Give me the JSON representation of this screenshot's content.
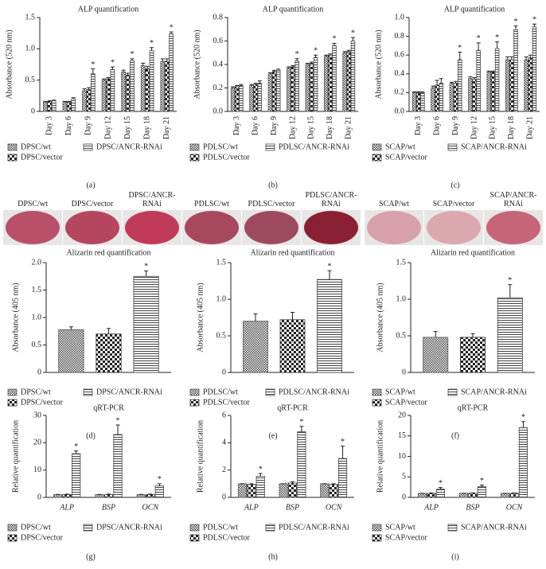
{
  "chart_data": [
    {
      "type": "bar",
      "label": "(a)",
      "title": "ALP quantification",
      "ylabel": "Absorbance (520 nm)",
      "xtick_rotation": 90,
      "categories": [
        "Day 3",
        "Day 6",
        "Day 9",
        "Day 12",
        "Day 15",
        "Day 18",
        "Day 21"
      ],
      "ylim": [
        0,
        1.5
      ],
      "yticks": [
        0,
        0.5,
        {
          "value": 1,
          "label": "1.0"
        },
        1.5
      ],
      "series": [
        {
          "name": "DPSC/wt",
          "pattern": "grid",
          "color": "#555555",
          "values": [
            0.15,
            0.15,
            0.33,
            0.5,
            0.63,
            0.73,
            0.8
          ],
          "errors": [
            0.01,
            0.01,
            0.03,
            0.02,
            0.03,
            0.04,
            0.04
          ],
          "markers": [
            null,
            null,
            null,
            null,
            null,
            null,
            null
          ]
        },
        {
          "name": "DPSC/vector",
          "pattern": "checker",
          "color": "#333333",
          "values": [
            0.16,
            0.15,
            0.35,
            0.52,
            0.58,
            0.68,
            0.8
          ],
          "errors": [
            0.01,
            0.01,
            0.03,
            0.02,
            0.03,
            0.04,
            0.04
          ],
          "markers": [
            null,
            null,
            null,
            null,
            null,
            null,
            null
          ]
        },
        {
          "name": "DPSC/ANCR-RNAi",
          "pattern": "hstripe",
          "color": "#444444",
          "values": [
            0.17,
            0.2,
            0.6,
            0.67,
            0.81,
            0.97,
            1.24
          ],
          "errors": [
            0.01,
            0.02,
            0.08,
            0.04,
            0.03,
            0.05,
            0.03
          ],
          "markers": [
            null,
            null,
            "*",
            "*",
            "*",
            "*",
            "*"
          ]
        }
      ]
    },
    {
      "type": "bar",
      "label": "(b)",
      "title": "ALP quantification",
      "ylabel": "Absorbance (520 nm)",
      "xtick_rotation": 90,
      "categories": [
        "Day 3",
        "Day 6",
        "Day 9",
        "Day 12",
        "Day 15",
        "Day 18",
        "Day 21"
      ],
      "ylim": [
        0,
        0.8
      ],
      "yticks": [
        {
          "value": 0,
          "label": "0.0"
        },
        0.2,
        0.4,
        0.6,
        0.8
      ],
      "series": [
        {
          "name": "PDLSC/wt",
          "pattern": "grid",
          "color": "#555555",
          "values": [
            0.2,
            0.22,
            0.32,
            0.37,
            0.4,
            0.47,
            0.5
          ],
          "errors": [
            0.01,
            0.01,
            0.01,
            0.01,
            0.01,
            0.01,
            0.01
          ],
          "markers": [
            null,
            null,
            null,
            null,
            null,
            null,
            null
          ]
        },
        {
          "name": "PDLSC/vector",
          "pattern": "checker",
          "color": "#333333",
          "values": [
            0.21,
            0.23,
            0.34,
            0.38,
            0.41,
            0.48,
            0.51
          ],
          "errors": [
            0.01,
            0.01,
            0.01,
            0.01,
            0.01,
            0.01,
            0.01
          ],
          "markers": [
            null,
            null,
            null,
            null,
            null,
            null,
            null
          ]
        },
        {
          "name": "PDLSC/ANCR-RNAi",
          "pattern": "hstripe",
          "color": "#444444",
          "values": [
            0.22,
            0.24,
            0.35,
            0.43,
            0.46,
            0.56,
            0.6
          ],
          "errors": [
            0.01,
            0.02,
            0.01,
            0.02,
            0.02,
            0.02,
            0.03
          ],
          "markers": [
            null,
            null,
            null,
            "*",
            "*",
            "*",
            "*"
          ]
        }
      ]
    },
    {
      "type": "bar",
      "label": "(c)",
      "title": "ALP quantification",
      "ylabel": "Absorbance (520 nm)",
      "xtick_rotation": 90,
      "categories": [
        "Day 3",
        "Day 6",
        "Day 9",
        "Day 12",
        "Day 15",
        "Day 18",
        "Day 21"
      ],
      "ylim": [
        0,
        1
      ],
      "yticks": [
        {
          "value": 0,
          "label": "0.0"
        },
        0.2,
        0.4,
        0.6,
        0.8,
        {
          "value": 1,
          "label": "1.0"
        }
      ],
      "series": [
        {
          "name": "SCAP/wt",
          "pattern": "grid",
          "color": "#555555",
          "values": [
            0.2,
            0.25,
            0.3,
            0.35,
            0.42,
            0.55,
            0.55
          ],
          "errors": [
            0.01,
            0.02,
            0.01,
            0.02,
            0.01,
            0.03,
            0.03
          ],
          "markers": [
            null,
            null,
            null,
            null,
            null,
            null,
            null
          ]
        },
        {
          "name": "SCAP/vector",
          "pattern": "checker",
          "color": "#333333",
          "values": [
            0.2,
            0.28,
            0.3,
            0.34,
            0.42,
            0.55,
            0.57
          ],
          "errors": [
            0.01,
            0.05,
            0.02,
            0.02,
            0.01,
            0.03,
            0.03
          ],
          "markers": [
            null,
            null,
            null,
            null,
            null,
            null,
            null
          ]
        },
        {
          "name": "SCAP/ANCR-RNAi",
          "pattern": "hstripe",
          "color": "#444444",
          "values": [
            0.2,
            0.3,
            0.55,
            0.65,
            0.67,
            0.87,
            0.9
          ],
          "errors": [
            0.01,
            0.05,
            0.08,
            0.08,
            0.07,
            0.04,
            0.03
          ],
          "markers": [
            null,
            null,
            "*",
            "*",
            "*",
            "*",
            "*"
          ]
        }
      ]
    },
    {
      "type": "bar",
      "label": "(d)",
      "title": "Alizarin red quantification",
      "ylabel": "Absorbance (405 nm)",
      "categories": [
        null
      ],
      "ylim": [
        0,
        2
      ],
      "yticks": [
        0,
        0.5,
        {
          "value": 1,
          "label": "1.0"
        },
        1.5,
        {
          "value": 2,
          "label": "2.0"
        }
      ],
      "series": [
        {
          "name": "DPSC/wt",
          "pattern": "grid",
          "color": "#555555",
          "values": [
            0.78
          ],
          "errors": [
            0.05
          ],
          "markers": [
            null
          ]
        },
        {
          "name": "DPSC/vector",
          "pattern": "checker",
          "color": "#333333",
          "values": [
            0.7
          ],
          "errors": [
            0.1
          ],
          "markers": [
            null
          ]
        },
        {
          "name": "DPSC/ANCR-RNAi",
          "pattern": "hstripe",
          "color": "#444444",
          "values": [
            1.75
          ],
          "errors": [
            0.1
          ],
          "markers": [
            "*"
          ]
        }
      ]
    },
    {
      "type": "bar",
      "label": "(e)",
      "title": "Alizarin red quantification",
      "ylabel": "Absorbance (405 nm)",
      "categories": [
        null
      ],
      "ylim": [
        0,
        1.5
      ],
      "yticks": [
        0,
        0.5,
        {
          "value": 1,
          "label": "1.0"
        },
        1.5
      ],
      "series": [
        {
          "name": "PDLSC/wt",
          "pattern": "grid",
          "color": "#555555",
          "values": [
            0.7
          ],
          "errors": [
            0.1
          ],
          "markers": [
            null
          ]
        },
        {
          "name": "PDLSC/vector",
          "pattern": "checker",
          "color": "#333333",
          "values": [
            0.72
          ],
          "errors": [
            0.1
          ],
          "markers": [
            null
          ]
        },
        {
          "name": "PDLSC/ANCR-RNAi",
          "pattern": "hstripe",
          "color": "#444444",
          "values": [
            1.27
          ],
          "errors": [
            0.12
          ],
          "markers": [
            "*"
          ]
        }
      ]
    },
    {
      "type": "bar",
      "label": "(f)",
      "title": "Alizarin red quantification",
      "ylabel": "Absorbance (405 nm)",
      "categories": [
        null
      ],
      "ylim": [
        0,
        1.5
      ],
      "yticks": [
        0,
        0.5,
        {
          "value": 1,
          "label": "1.0"
        },
        1.5
      ],
      "series": [
        {
          "name": "SCAP/wt",
          "pattern": "grid",
          "color": "#555555",
          "values": [
            0.48
          ],
          "errors": [
            0.08
          ],
          "markers": [
            null
          ]
        },
        {
          "name": "SCAP/vector",
          "pattern": "checker",
          "color": "#333333",
          "values": [
            0.48
          ],
          "errors": [
            0.05
          ],
          "markers": [
            null
          ]
        },
        {
          "name": "SCAP/ANCR-RNAi",
          "pattern": "hstripe",
          "color": "#444444",
          "values": [
            1.02
          ],
          "errors": [
            0.18
          ],
          "markers": [
            "*"
          ]
        }
      ]
    },
    {
      "type": "bar",
      "label": "(g)",
      "title": "qRT-PCR",
      "ylabel": "Relative quantification",
      "categories": [
        "ALP",
        "BSP",
        "OCN"
      ],
      "ylim": [
        0,
        30
      ],
      "yticks": [
        0,
        10,
        20,
        30
      ],
      "series": [
        {
          "name": "DPSC/wt",
          "pattern": "grid",
          "color": "#555555",
          "values": [
            1,
            1,
            1
          ],
          "errors": [
            0.1,
            0.1,
            0.1
          ],
          "markers": [
            null,
            null,
            null
          ]
        },
        {
          "name": "DPSC/vector",
          "pattern": "checker",
          "color": "#333333",
          "values": [
            1,
            1,
            1
          ],
          "errors": [
            0.2,
            0.2,
            0.2
          ],
          "markers": [
            null,
            null,
            null
          ]
        },
        {
          "name": "DPSC/ANCR-RNAi",
          "pattern": "hstripe",
          "color": "#444444",
          "values": [
            16,
            23,
            4.2
          ],
          "errors": [
            1,
            3.5,
            0.8
          ],
          "markers": [
            "*",
            "*",
            "*"
          ]
        }
      ]
    },
    {
      "type": "bar",
      "label": "(h)",
      "title": "qRT-PCR",
      "ylabel": "Relative quantification",
      "categories": [
        "ALP",
        "BSP",
        "OCN"
      ],
      "ylim": [
        0,
        6
      ],
      "yticks": [
        0,
        2,
        4,
        6
      ],
      "series": [
        {
          "name": "PDLSC/wt",
          "pattern": "grid",
          "color": "#555555",
          "values": [
            1,
            1,
            1
          ],
          "errors": [
            0,
            0,
            0
          ],
          "markers": [
            null,
            null,
            null
          ]
        },
        {
          "name": "PDLSC/vector",
          "pattern": "checker",
          "color": "#333333",
          "values": [
            0.95,
            1.05,
            0.95
          ],
          "errors": [
            0.05,
            0.1,
            0.05
          ],
          "markers": [
            null,
            null,
            null
          ]
        },
        {
          "name": "PDLSC/ANCR-RNAi",
          "pattern": "hstripe",
          "color": "#444444",
          "values": [
            1.55,
            4.8,
            2.85
          ],
          "errors": [
            0.2,
            0.4,
            0.9
          ],
          "markers": [
            "*",
            "*",
            "*"
          ]
        }
      ]
    },
    {
      "type": "bar",
      "label": "(i)",
      "title": "qRT-PCR",
      "ylabel": "Relative quantification",
      "categories": [
        "ALP",
        "BSP",
        "OCN"
      ],
      "ylim": [
        0,
        20
      ],
      "yticks": [
        0,
        5,
        10,
        15,
        20
      ],
      "series": [
        {
          "name": "SCAP/wt",
          "pattern": "grid",
          "color": "#555555",
          "values": [
            1,
            1,
            1
          ],
          "errors": [
            0,
            0,
            0
          ],
          "markers": [
            null,
            null,
            null
          ]
        },
        {
          "name": "SCAP/vector",
          "pattern": "checker",
          "color": "#333333",
          "values": [
            1,
            1,
            1
          ],
          "errors": [
            0.1,
            0.1,
            0.1
          ],
          "markers": [
            null,
            null,
            null
          ]
        },
        {
          "name": "SCAP/ANCR-RNAi",
          "pattern": "hstripe",
          "color": "#444444",
          "values": [
            2,
            2.6,
            17
          ],
          "errors": [
            0.4,
            0.4,
            1.5
          ],
          "markers": [
            "*",
            "*",
            "*"
          ]
        }
      ]
    }
  ],
  "photos": [
    {
      "label": "DPSC/wt",
      "color": "#b8506a"
    },
    {
      "label": "DPSC/vector",
      "color": "#b4475f"
    },
    {
      "label": "DPSC/ANCR-RNAi",
      "color": "#c03a5a"
    },
    {
      "label": "PDLSC/wt",
      "color": "#a8485e"
    },
    {
      "label": "PDLSC/vector",
      "color": "#9e4a5e"
    },
    {
      "label": "PDLSC/ANCR-RNAi",
      "color": "#8a2034"
    },
    {
      "label": "SCAP/wt",
      "color": "#d8a0aa"
    },
    {
      "label": "SCAP/vector",
      "color": "#dca8b0"
    },
    {
      "label": "SCAP/ANCR-RNAi",
      "color": "#c66478"
    }
  ]
}
